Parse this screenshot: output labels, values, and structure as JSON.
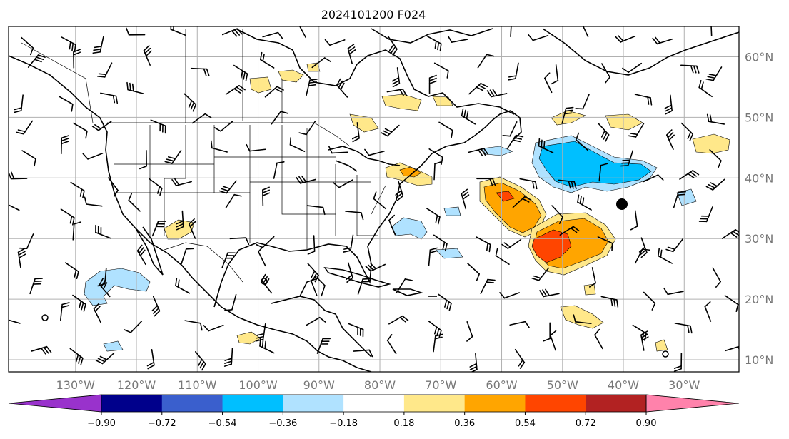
{
  "title": "2024101200 F024",
  "lat_labels": [
    {
      "deg": 60,
      "text": "60°N"
    },
    {
      "deg": 50,
      "text": "50°N"
    },
    {
      "deg": 40,
      "text": "40°N"
    },
    {
      "deg": 30,
      "text": "30°N"
    },
    {
      "deg": 20,
      "text": "20°N"
    },
    {
      "deg": 10,
      "text": "10°N"
    }
  ],
  "lon_labels": [
    {
      "deg": -130,
      "text": "130°W"
    },
    {
      "deg": -120,
      "text": "120°W"
    },
    {
      "deg": -110,
      "text": "110°W"
    },
    {
      "deg": -100,
      "text": "100°W"
    },
    {
      "deg": -90,
      "text": "90°W"
    },
    {
      "deg": -80,
      "text": "80°W"
    },
    {
      "deg": -70,
      "text": "70°W"
    },
    {
      "deg": -60,
      "text": "60°W"
    },
    {
      "deg": -50,
      "text": "50°W"
    },
    {
      "deg": -40,
      "text": "40°W"
    },
    {
      "deg": -30,
      "text": "30°W"
    }
  ],
  "extent": {
    "lon_min": -141,
    "lon_max": -21,
    "lat_min": 8,
    "lat_max": 65
  },
  "colorbar": {
    "colors": [
      "#9932cc",
      "#00008b",
      "#3a5fcd",
      "#00bfff",
      "#b0e2ff",
      "#ffffff",
      "#ffe88a",
      "#ffa500",
      "#ff4500",
      "#b22222",
      "#ff82ab"
    ],
    "tick_labels": [
      "−0.90",
      "−0.72",
      "−0.54",
      "−0.36",
      "−0.18",
      "0.18",
      "0.36",
      "0.54",
      "0.72",
      "0.90"
    ]
  },
  "colors": {
    "land_line": "#000000",
    "grid": "#b0b0b0",
    "label": "#777777"
  }
}
